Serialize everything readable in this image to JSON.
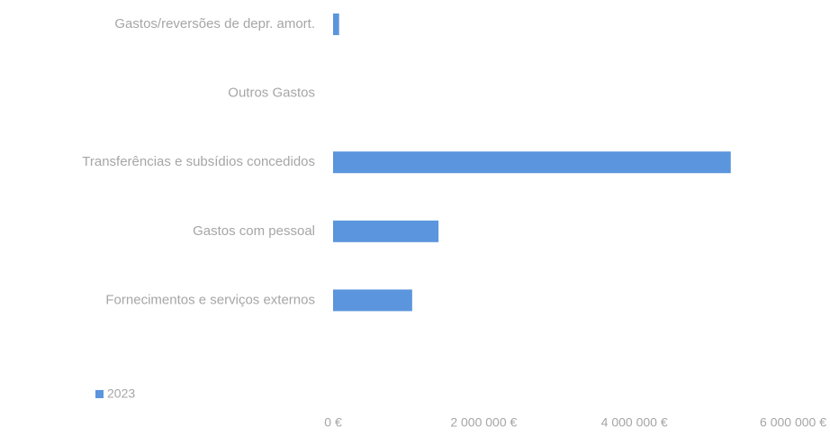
{
  "chart_data": {
    "type": "bar",
    "orientation": "horizontal",
    "categories": [
      "Gastos/reversões de depr. amort.",
      "Outros Gastos",
      "Transferências e subsídios concedidos",
      "Gastos com pessoal",
      "Fornecimentos e serviços externos"
    ],
    "series": [
      {
        "name": "2023",
        "color": "#5b95dd",
        "values": [
          80000,
          0,
          5280000,
          1400000,
          1050000
        ]
      }
    ],
    "xlim": [
      0,
      6000000
    ],
    "xticks": [
      {
        "value": 0,
        "label": "0 €"
      },
      {
        "value": 2000000,
        "label": "2 000 000 €"
      },
      {
        "value": 4000000,
        "label": "4 000 000 €"
      },
      {
        "value": 6000000,
        "label": "6 000 000 €"
      }
    ],
    "legend": "bottom-left"
  }
}
